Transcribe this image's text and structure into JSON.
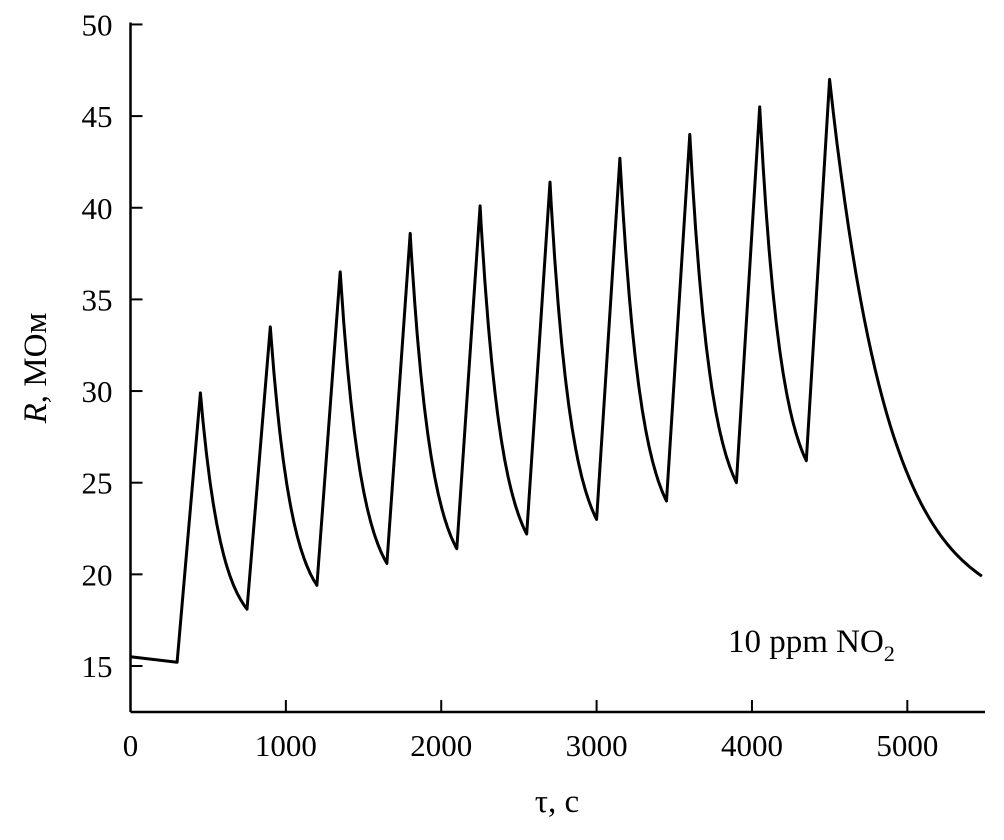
{
  "chart_data": {
    "type": "line",
    "title": "",
    "xlabel": "τ, с",
    "ylabel_italic": "R",
    "ylabel_rest": ", МОм",
    "annotation": {
      "main": "10 ppm NO",
      "sub": "2"
    },
    "xlim": [
      0,
      5500
    ],
    "ylim": [
      12.5,
      50
    ],
    "xticks": [
      0,
      1000,
      2000,
      3000,
      4000,
      5000
    ],
    "yticks": [
      15,
      20,
      25,
      30,
      35,
      40,
      45,
      50
    ],
    "grid": false,
    "line_color": "#000000",
    "series": [
      {
        "name": "R",
        "start": [
          [
            0,
            15.5
          ],
          [
            300,
            15.2
          ]
        ],
        "peaks": [
          [
            450,
            29.9
          ],
          [
            900,
            33.5
          ],
          [
            1350,
            36.5
          ],
          [
            1800,
            38.6
          ],
          [
            2250,
            40.1
          ],
          [
            2700,
            41.4
          ],
          [
            3150,
            42.7
          ],
          [
            3600,
            44.0
          ],
          [
            4050,
            45.5
          ],
          [
            4500,
            47.0
          ]
        ],
        "troughs": [
          [
            750,
            18.1
          ],
          [
            1200,
            19.4
          ],
          [
            1650,
            20.6
          ],
          [
            2100,
            21.4
          ],
          [
            2550,
            22.2
          ],
          [
            3000,
            23.0
          ],
          [
            3450,
            24.0
          ],
          [
            3900,
            25.0
          ],
          [
            4350,
            26.2
          ]
        ],
        "end": [
          5480,
          19.9
        ]
      }
    ]
  }
}
